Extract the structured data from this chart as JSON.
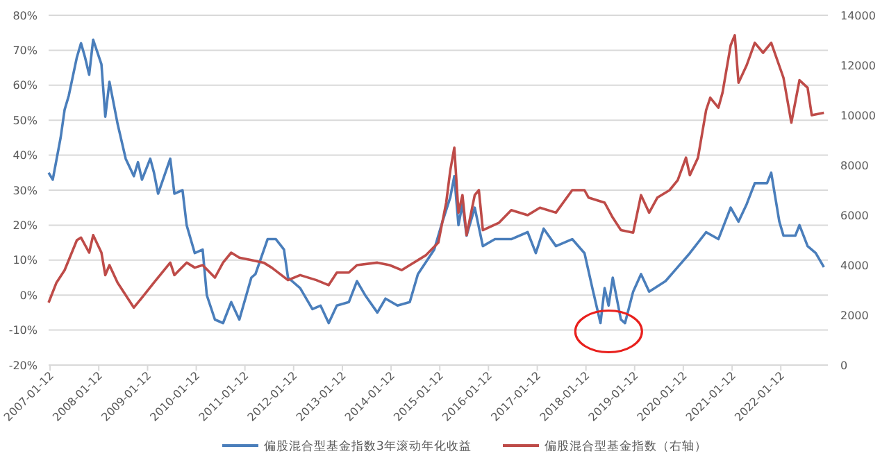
{
  "chart_data": {
    "type": "line",
    "xlim": [
      "2007-01-01",
      "2022-12-31"
    ],
    "xticks": [
      "2007-01-12",
      "2008-01-12",
      "2009-01-12",
      "2010-01-12",
      "2011-01-12",
      "2012-01-12",
      "2013-01-12",
      "2014-01-12",
      "2015-01-12",
      "2016-01-12",
      "2017-01-12",
      "2018-01-12",
      "2019-01-12",
      "2020-01-12",
      "2021-01-12",
      "2022-01-12"
    ],
    "ylim": [
      -20,
      80
    ],
    "yticks": [
      {
        "value": -20,
        "label": "-20%"
      },
      {
        "value": -10,
        "label": "-10%"
      },
      {
        "value": 0,
        "label": "0%"
      },
      {
        "value": 10,
        "label": "10%"
      },
      {
        "value": 20,
        "label": "20%"
      },
      {
        "value": 30,
        "label": "30%"
      },
      {
        "value": 40,
        "label": "40%"
      },
      {
        "value": 50,
        "label": "50%"
      },
      {
        "value": 60,
        "label": "60%"
      },
      {
        "value": 70,
        "label": "70%"
      },
      {
        "value": 80,
        "label": "80%"
      }
    ],
    "y2lim": [
      0,
      14000
    ],
    "y2ticks": [
      0,
      2000,
      4000,
      6000,
      8000,
      10000,
      12000,
      14000
    ],
    "grid": "y",
    "legend": "bottom",
    "marker": "none",
    "line_style": "solid",
    "series": [
      {
        "name": "偏股混合型基金指数3年滚动年化收益",
        "color": "#4a7ebb",
        "x": [
          "2007-01",
          "2007-02",
          "2007-04",
          "2007-05",
          "2007-06",
          "2007-08",
          "2007-09",
          "2007-10",
          "2007-11",
          "2007-12",
          "2008-02",
          "2008-03",
          "2008-04",
          "2008-06",
          "2008-08",
          "2008-10",
          "2008-11",
          "2008-12",
          "2009-02",
          "2009-03",
          "2009-04",
          "2009-07",
          "2009-08",
          "2009-10",
          "2009-11",
          "2010-01",
          "2010-03",
          "2010-04",
          "2010-06",
          "2010-08",
          "2010-10",
          "2010-12",
          "2011-03",
          "2011-04",
          "2011-07",
          "2011-09",
          "2011-11",
          "2011-12",
          "2012-03",
          "2012-06",
          "2012-08",
          "2012-10",
          "2012-12",
          "2013-03",
          "2013-05",
          "2013-07",
          "2013-10",
          "2013-12",
          "2014-03",
          "2014-06",
          "2014-08",
          "2014-12",
          "2015-02",
          "2015-04",
          "2015-05",
          "2015-06",
          "2015-07",
          "2015-08",
          "2015-10",
          "2015-12",
          "2016-03",
          "2016-07",
          "2016-11",
          "2017-01",
          "2017-03",
          "2017-06",
          "2017-10",
          "2018-01",
          "2018-03",
          "2018-05",
          "2018-06",
          "2018-07",
          "2018-08",
          "2018-10",
          "2018-11",
          "2019-01",
          "2019-03",
          "2019-05",
          "2019-09",
          "2019-12",
          "2020-03",
          "2020-07",
          "2020-10",
          "2021-01",
          "2021-03",
          "2021-05",
          "2021-07",
          "2021-10",
          "2021-11",
          "2022-01",
          "2022-02",
          "2022-05",
          "2022-06",
          "2022-08",
          "2022-10",
          "2022-12"
        ],
        "values": [
          35,
          33,
          45,
          53,
          57,
          68,
          72,
          68,
          63,
          73,
          66,
          51,
          61,
          49,
          39,
          34,
          38,
          33,
          39,
          35,
          29,
          39,
          29,
          30,
          20,
          12,
          13,
          0,
          -7,
          -8,
          -2,
          -7,
          5,
          6,
          16,
          16,
          13,
          5,
          2,
          -4,
          -3,
          -8,
          -3,
          -2,
          4,
          0,
          -5,
          -1,
          -3,
          -2,
          6,
          13,
          21,
          28,
          34,
          20,
          26,
          17,
          25,
          14,
          16,
          16,
          18,
          12,
          19,
          14,
          16,
          12,
          2,
          -8,
          2,
          -3,
          5,
          -7,
          -8,
          1,
          6,
          1,
          4,
          8,
          12,
          18,
          16,
          25,
          21,
          26,
          32,
          32,
          35,
          21,
          17,
          17,
          20,
          14,
          12,
          8
        ]
      },
      {
        "name": "偏股混合型基金指数（右轴）",
        "color": "#be4b48",
        "axis": "y2",
        "x": [
          "2007-01",
          "2007-03",
          "2007-05",
          "2007-08",
          "2007-09",
          "2007-11",
          "2007-12",
          "2008-02",
          "2008-03",
          "2008-04",
          "2008-06",
          "2008-08",
          "2008-10",
          "2008-12",
          "2009-03",
          "2009-07",
          "2009-08",
          "2009-11",
          "2010-01",
          "2010-03",
          "2010-06",
          "2010-08",
          "2010-10",
          "2010-12",
          "2011-03",
          "2011-06",
          "2011-08",
          "2011-12",
          "2012-03",
          "2012-07",
          "2012-10",
          "2012-12",
          "2013-03",
          "2013-05",
          "2013-10",
          "2014-01",
          "2014-04",
          "2014-06",
          "2014-10",
          "2015-01",
          "2015-03",
          "2015-04",
          "2015-05",
          "2015-06",
          "2015-07",
          "2015-08",
          "2015-10",
          "2015-11",
          "2015-12",
          "2016-04",
          "2016-07",
          "2016-11",
          "2017-02",
          "2017-06",
          "2017-10",
          "2018-01",
          "2018-02",
          "2018-06",
          "2018-08",
          "2018-10",
          "2019-01",
          "2019-03",
          "2019-05",
          "2019-07",
          "2019-10",
          "2019-12",
          "2020-02",
          "2020-03",
          "2020-05",
          "2020-07",
          "2020-08",
          "2020-10",
          "2020-11",
          "2021-01",
          "2021-02",
          "2021-03",
          "2021-05",
          "2021-07",
          "2021-09",
          "2021-11",
          "2022-02",
          "2022-04",
          "2022-06",
          "2022-08",
          "2022-09",
          "2022-12"
        ],
        "values": [
          2500,
          3300,
          3800,
          5000,
          5100,
          4500,
          5200,
          4500,
          3600,
          4000,
          3300,
          2800,
          2300,
          2700,
          3300,
          4100,
          3600,
          4100,
          3900,
          4000,
          3500,
          4100,
          4500,
          4300,
          4200,
          4100,
          3900,
          3400,
          3600,
          3400,
          3200,
          3700,
          3700,
          4000,
          4100,
          4000,
          3800,
          4000,
          4400,
          4900,
          6500,
          7800,
          8700,
          6100,
          6800,
          5200,
          6800,
          7000,
          5400,
          5700,
          6200,
          6000,
          6300,
          6100,
          7000,
          7000,
          6700,
          6500,
          5900,
          5400,
          5300,
          6800,
          6100,
          6700,
          7000,
          7400,
          8300,
          7600,
          8300,
          10200,
          10700,
          10300,
          10900,
          12800,
          13200,
          11300,
          12000,
          12900,
          12500,
          12900,
          11500,
          9700,
          11400,
          11100,
          10000,
          10100
        ]
      }
    ]
  }
}
